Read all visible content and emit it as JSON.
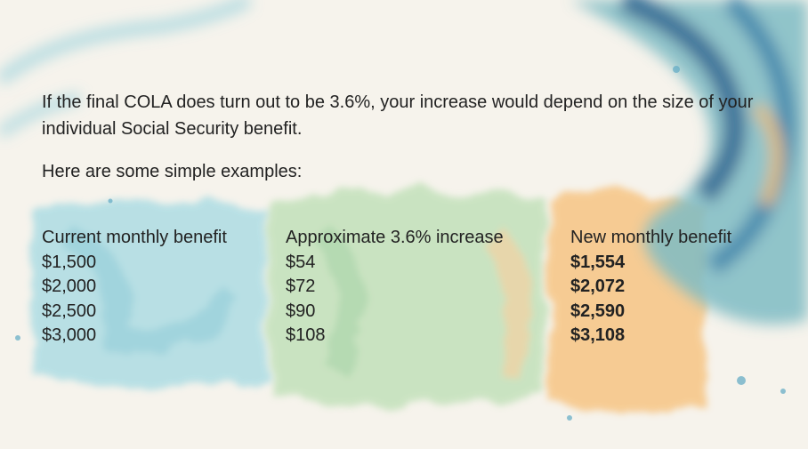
{
  "paragraphs": [
    "If the final COLA does turn out to be 3.6%, your increase would depend on the size of your individual Social Security benefit.",
    "Here are some simple examples:"
  ],
  "table": {
    "header": [
      "Current monthly benefit",
      "Approximate 3.6% increase",
      "New monthly benefit"
    ],
    "rows": [
      [
        "$1,500",
        "$54",
        "$1,554"
      ],
      [
        "$2,000",
        "$72",
        "$2,072"
      ],
      [
        "$2,500",
        "$90",
        "$2,590"
      ],
      [
        "$3,000",
        "$108",
        "$3,108"
      ]
    ]
  }
}
